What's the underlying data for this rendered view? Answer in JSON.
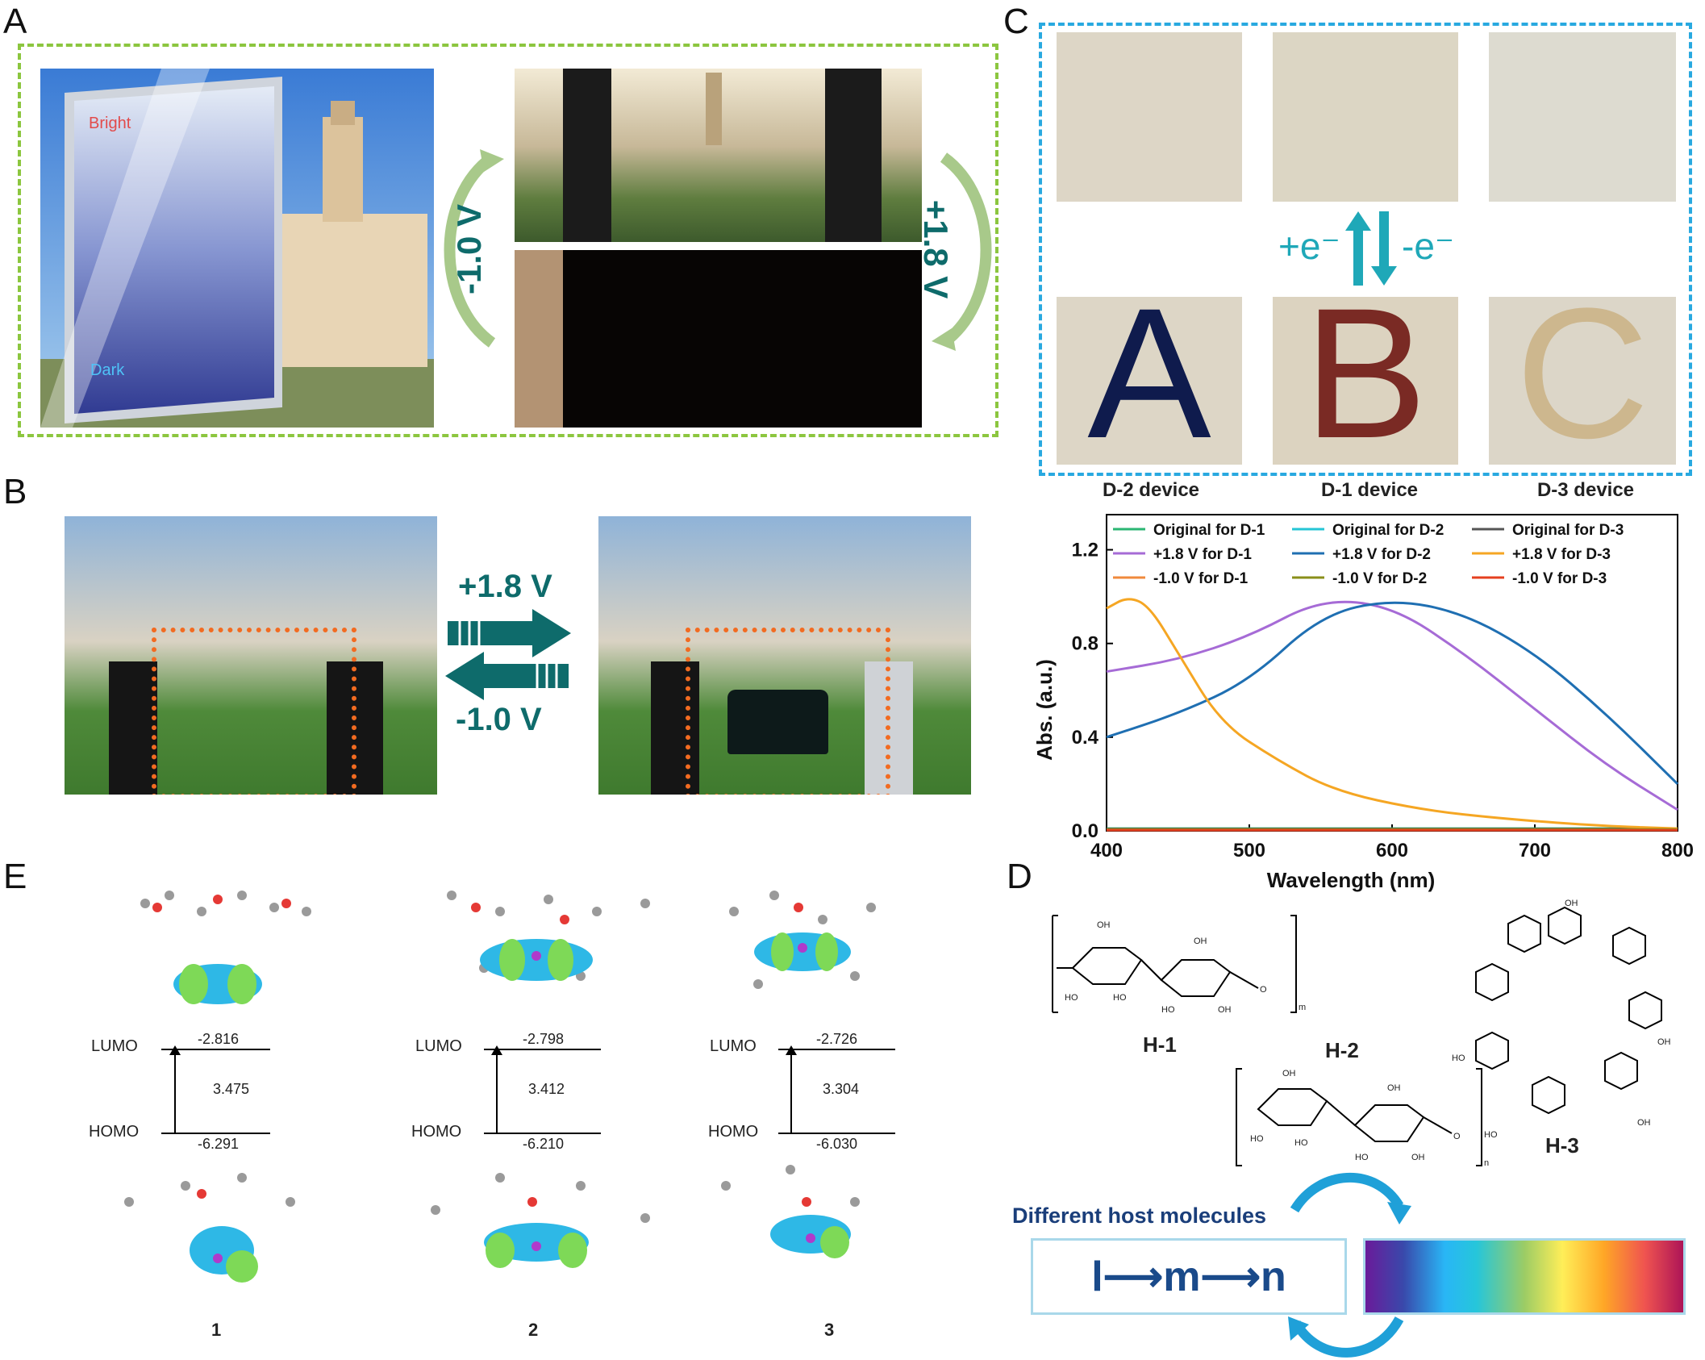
{
  "panels": {
    "a": "A",
    "b": "B",
    "c": "C",
    "d": "D",
    "e": "E"
  },
  "panel_a": {
    "bright_label": "Bright",
    "dark_label": "Dark",
    "voltage_left": "-1.0 V",
    "voltage_right": "+1.8 V"
  },
  "panel_b": {
    "voltage_top": "+1.8 V",
    "voltage_bottom": "-1.0 V"
  },
  "panel_c": {
    "reduction_label": "+e⁻",
    "oxidation_label": "-e⁻",
    "letters": [
      "A",
      "B",
      "C"
    ],
    "devices": [
      "D-2 device",
      "D-1 device",
      "D-3 device"
    ]
  },
  "chart_data": {
    "type": "line",
    "xlabel": "Wavelength (nm)",
    "ylabel": "Abs. (a.u.)",
    "xlim": [
      400,
      800
    ],
    "ylim": [
      0,
      1.35
    ],
    "xticks": [
      400,
      500,
      600,
      700,
      800
    ],
    "yticks": [
      0.0,
      0.4,
      0.8,
      1.2
    ],
    "ytick_labels": [
      "0.0",
      "0.4",
      "0.8",
      "1.2"
    ],
    "legend_position": "top",
    "series": [
      {
        "name": "Original for D-1",
        "color": "#2bb673",
        "x": [
          400,
          500,
          600,
          700,
          800
        ],
        "y": [
          0.01,
          0.01,
          0.01,
          0.01,
          0.01
        ]
      },
      {
        "name": "Original for D-2",
        "color": "#25c5d5",
        "x": [
          400,
          500,
          600,
          700,
          800
        ],
        "y": [
          0.005,
          0.005,
          0.005,
          0.005,
          0.005
        ]
      },
      {
        "name": "Original for D-3",
        "color": "#555555",
        "x": [
          400,
          500,
          600,
          700,
          800
        ],
        "y": [
          0.008,
          0.008,
          0.008,
          0.008,
          0.008
        ]
      },
      {
        "name": "+1.8 V for D-1",
        "color": "#a66bd6",
        "x": [
          400,
          450,
          500,
          550,
          600,
          650,
          700,
          750,
          800
        ],
        "y": [
          0.68,
          0.73,
          0.83,
          0.99,
          0.96,
          0.76,
          0.52,
          0.28,
          0.09
        ]
      },
      {
        "name": "+1.8 V for D-2",
        "color": "#1f6fb2",
        "x": [
          400,
          450,
          500,
          550,
          600,
          650,
          700,
          750,
          800
        ],
        "y": [
          0.4,
          0.5,
          0.64,
          0.92,
          0.99,
          0.93,
          0.76,
          0.5,
          0.2
        ]
      },
      {
        "name": "+1.8 V for D-3",
        "color": "#f5a623",
        "x": [
          400,
          415,
          430,
          450,
          480,
          520,
          560,
          620,
          680,
          750,
          800
        ],
        "y": [
          0.95,
          1.0,
          0.96,
          0.76,
          0.46,
          0.3,
          0.17,
          0.09,
          0.05,
          0.02,
          0.01
        ]
      },
      {
        "name": "-1.0 V for D-1",
        "color": "#f08a3c",
        "x": [
          400,
          500,
          600,
          700,
          800
        ],
        "y": [
          0.004,
          0.004,
          0.004,
          0.004,
          0.004
        ]
      },
      {
        "name": "-1.0 V for D-2",
        "color": "#8a8f1a",
        "x": [
          400,
          500,
          600,
          700,
          800
        ],
        "y": [
          0.006,
          0.006,
          0.006,
          0.006,
          0.006
        ]
      },
      {
        "name": "-1.0 V for D-3",
        "color": "#e5401f",
        "x": [
          400,
          500,
          600,
          700,
          800
        ],
        "y": [
          0.003,
          0.003,
          0.003,
          0.003,
          0.003
        ]
      }
    ]
  },
  "panel_d": {
    "molecules": [
      "H-1",
      "H-2",
      "H-3"
    ],
    "repeat_m": "m",
    "repeat_n": "n",
    "oh_label": "OH",
    "ho_label": "HO",
    "o_label": "O",
    "host_text": "Different host molecules",
    "sequence": "l⟶m⟶n"
  },
  "panel_e": {
    "lumo_label": "LUMO",
    "homo_label": "HOMO",
    "complexes": [
      {
        "id": "1",
        "lumo": "-2.816",
        "homo": "-6.291",
        "gap": "3.475"
      },
      {
        "id": "2",
        "lumo": "-2.798",
        "homo": "-6.210",
        "gap": "3.412"
      },
      {
        "id": "3",
        "lumo": "-2.726",
        "homo": "-6.030",
        "gap": "3.304"
      }
    ]
  }
}
